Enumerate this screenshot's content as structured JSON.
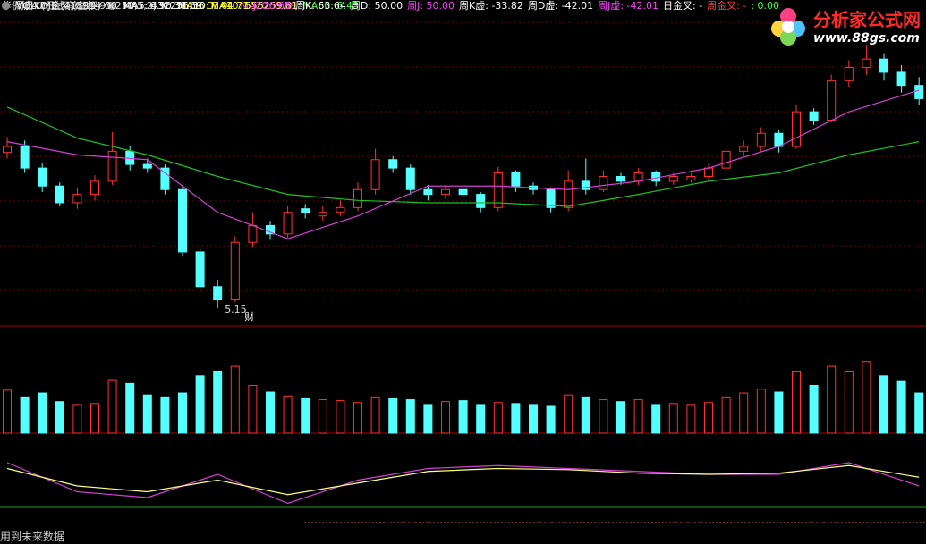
{
  "chart_data": {
    "type": "candlestick",
    "legend": {
      "title": "华侨城A (日线,前复权)",
      "ma5": "MA5: 6.90",
      "ma10": "MA10: 7.01",
      "ma20": "MA20: 6.89",
      "ma60": "MA60: 6.43"
    },
    "low_annotation": "5.15",
    "event_marker": "财",
    "logo": {
      "name": "分析家公式网",
      "url": "www.88gs.com"
    },
    "ylim": [
      5.0,
      7.5
    ],
    "candles": [
      [
        6.45,
        6.58,
        6.4,
        6.5
      ],
      [
        6.5,
        6.55,
        6.28,
        6.32
      ],
      [
        6.32,
        6.36,
        6.12,
        6.17
      ],
      [
        6.17,
        6.2,
        6.0,
        6.03
      ],
      [
        6.03,
        6.15,
        5.98,
        6.1
      ],
      [
        6.1,
        6.26,
        6.05,
        6.21
      ],
      [
        6.21,
        6.62,
        6.18,
        6.46
      ],
      [
        6.46,
        6.5,
        6.3,
        6.35
      ],
      [
        6.35,
        6.4,
        6.28,
        6.32
      ],
      [
        6.32,
        6.35,
        6.1,
        6.14
      ],
      [
        6.14,
        6.18,
        5.58,
        5.62
      ],
      [
        5.62,
        5.66,
        5.28,
        5.33
      ],
      [
        5.33,
        5.38,
        5.15,
        5.22
      ],
      [
        5.22,
        5.75,
        5.2,
        5.7
      ],
      [
        5.7,
        5.95,
        5.66,
        5.84
      ],
      [
        5.84,
        5.88,
        5.72,
        5.77
      ],
      [
        5.77,
        6.0,
        5.74,
        5.95
      ],
      [
        5.98,
        6.02,
        5.9,
        5.95
      ],
      [
        5.92,
        6.0,
        5.88,
        5.95
      ],
      [
        5.95,
        6.05,
        5.92,
        5.99
      ],
      [
        5.99,
        6.2,
        5.96,
        6.14
      ],
      [
        6.14,
        6.48,
        6.1,
        6.39
      ],
      [
        6.39,
        6.42,
        6.28,
        6.32
      ],
      [
        6.32,
        6.35,
        6.1,
        6.14
      ],
      [
        6.14,
        6.18,
        6.05,
        6.1
      ],
      [
        6.1,
        6.18,
        6.06,
        6.14
      ],
      [
        6.14,
        6.16,
        6.06,
        6.1
      ],
      [
        6.1,
        6.12,
        5.95,
        5.99
      ],
      [
        5.99,
        6.33,
        5.96,
        6.28
      ],
      [
        6.28,
        6.3,
        6.12,
        6.17
      ],
      [
        6.17,
        6.2,
        6.1,
        6.14
      ],
      [
        6.14,
        6.16,
        5.95,
        5.99
      ],
      [
        5.99,
        6.3,
        5.96,
        6.21
      ],
      [
        6.21,
        6.4,
        6.1,
        6.14
      ],
      [
        6.14,
        6.3,
        6.12,
        6.25
      ],
      [
        6.25,
        6.28,
        6.18,
        6.21
      ],
      [
        6.21,
        6.32,
        6.18,
        6.28
      ],
      [
        6.28,
        6.3,
        6.17,
        6.21
      ],
      [
        6.21,
        6.28,
        6.18,
        6.25
      ],
      [
        6.22,
        6.28,
        6.2,
        6.25
      ],
      [
        6.25,
        6.36,
        6.22,
        6.32
      ],
      [
        6.32,
        6.5,
        6.3,
        6.46
      ],
      [
        6.46,
        6.55,
        6.42,
        6.5
      ],
      [
        6.5,
        6.66,
        6.46,
        6.61
      ],
      [
        6.61,
        6.64,
        6.45,
        6.5
      ],
      [
        6.5,
        6.85,
        6.48,
        6.79
      ],
      [
        6.79,
        6.82,
        6.68,
        6.72
      ],
      [
        6.72,
        7.1,
        6.7,
        7.05
      ],
      [
        7.05,
        7.22,
        7.0,
        7.16
      ],
      [
        7.16,
        7.35,
        7.1,
        7.23
      ],
      [
        7.23,
        7.28,
        7.05,
        7.12
      ],
      [
        7.12,
        7.18,
        6.95,
        7.01
      ],
      [
        7.01,
        7.08,
        6.85,
        6.9
      ]
    ],
    "up_color": "#ff3232",
    "down_color": "#54ffff",
    "ma_lines": [
      {
        "color": "#1fc01f",
        "x": [
          0,
          4,
          8,
          12,
          16,
          20,
          24,
          28,
          32,
          36,
          40,
          44,
          48,
          52
        ],
        "values": [
          6.83,
          6.57,
          6.43,
          6.25,
          6.1,
          6.05,
          6.03,
          6.03,
          6.0,
          6.1,
          6.21,
          6.28,
          6.43,
          6.54
        ]
      },
      {
        "color": "#d040d0",
        "x": [
          0,
          4,
          8,
          12,
          16,
          20,
          24,
          28,
          32,
          36,
          40,
          44,
          48,
          52
        ],
        "values": [
          6.54,
          6.43,
          6.39,
          5.95,
          5.73,
          5.92,
          6.17,
          6.17,
          6.14,
          6.21,
          6.32,
          6.5,
          6.79,
          6.97
        ]
      }
    ],
    "volume": {
      "legend": {
        "volume": "VOLUME: 418914.00",
        "ma5": "MA5: 432256.56",
        "ma10": "MA10: 556259.81"
      },
      "ylim": [
        0,
        1000000
      ],
      "values": [
        450000,
        380000,
        420000,
        330000,
        300000,
        310000,
        560000,
        520000,
        400000,
        380000,
        420000,
        600000,
        650000,
        700000,
        500000,
        430000,
        390000,
        370000,
        350000,
        340000,
        320000,
        380000,
        360000,
        350000,
        300000,
        330000,
        340000,
        300000,
        320000,
        310000,
        300000,
        290000,
        400000,
        380000,
        350000,
        330000,
        350000,
        300000,
        310000,
        300000,
        320000,
        380000,
        420000,
        460000,
        430000,
        650000,
        500000,
        700000,
        650000,
        750000,
        600000,
        550000,
        420000
      ]
    },
    "kdj": {
      "legend": {
        "title": "周日KDJ金叉(6,14,95,250,1,2)",
        "k": "K: 38.69",
        "d": "D: 44.71",
        "j": "J: 26.66",
        "wk": "周K: 63.64",
        "wd": "周D: 50.00",
        "wj": "周J: 50.00",
        "wkx": "周K虚: -33.82",
        "wdx": "周D虚: -42.01",
        "wjx": "周J虚: -42.01",
        "dgc": "日金叉: -",
        "wgc": "周金叉: -",
        "z": ": 0.00"
      },
      "ylim": [
        0,
        100
      ],
      "series": [
        {
          "color": "#d040d0",
          "x": [
            0,
            4,
            8,
            12,
            16,
            20,
            24,
            28,
            32,
            36,
            40,
            44,
            48,
            52
          ],
          "values": [
            80,
            30,
            20,
            60,
            10,
            50,
            70,
            75,
            70,
            65,
            60,
            60,
            80,
            40
          ]
        },
        {
          "color": "#ffff80",
          "x": [
            0,
            4,
            8,
            12,
            16,
            20,
            24,
            28,
            32,
            36,
            40,
            44,
            48,
            52
          ],
          "values": [
            70,
            40,
            30,
            50,
            25,
            45,
            65,
            70,
            68,
            62,
            60,
            62,
            75,
            55
          ]
        }
      ]
    },
    "footer": "用到未来数据"
  }
}
